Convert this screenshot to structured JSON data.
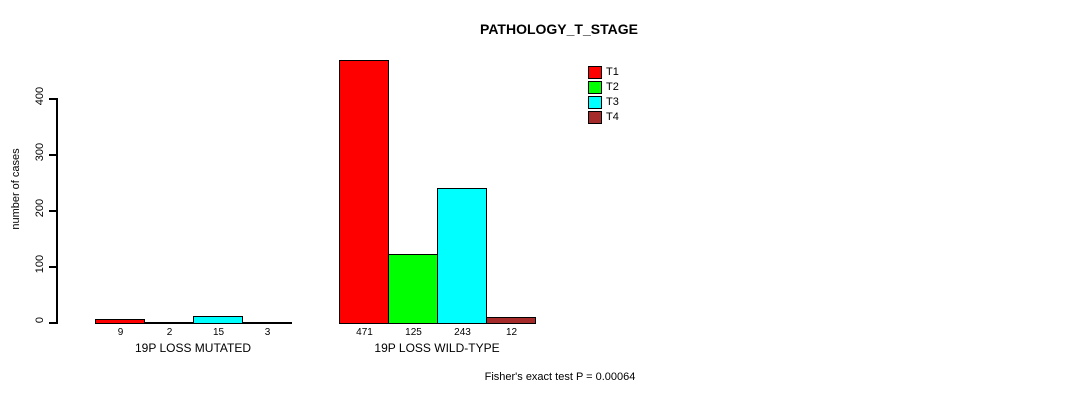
{
  "title": "PATHOLOGY_T_STAGE",
  "footer": "Fisher's exact test P = 0.00064",
  "chart_data": {
    "type": "bar",
    "title": "PATHOLOGY_T_STAGE",
    "xlabel": "",
    "ylabel": "number of cases",
    "categories": [
      "19P LOSS MUTATED",
      "19P LOSS WILD-TYPE"
    ],
    "series": [
      {
        "name": "T1",
        "color": "#ff0000",
        "values": [
          9,
          471
        ]
      },
      {
        "name": "T2",
        "color": "#00ff00",
        "values": [
          2,
          125
        ]
      },
      {
        "name": "T3",
        "color": "#00ffff",
        "values": [
          15,
          243
        ]
      },
      {
        "name": "T4",
        "color": "#a52a2a",
        "values": [
          3,
          12
        ]
      }
    ],
    "bar_labels": [
      [
        "9",
        "2",
        "15",
        "3"
      ],
      [
        "471",
        "125",
        "243",
        "12"
      ]
    ],
    "yticks": [
      0,
      100,
      200,
      300,
      400
    ],
    "ylim": [
      0,
      400
    ],
    "grid": false,
    "legend_position": "upper-middle",
    "annotation": "Fisher's exact test P = 0.00064"
  }
}
